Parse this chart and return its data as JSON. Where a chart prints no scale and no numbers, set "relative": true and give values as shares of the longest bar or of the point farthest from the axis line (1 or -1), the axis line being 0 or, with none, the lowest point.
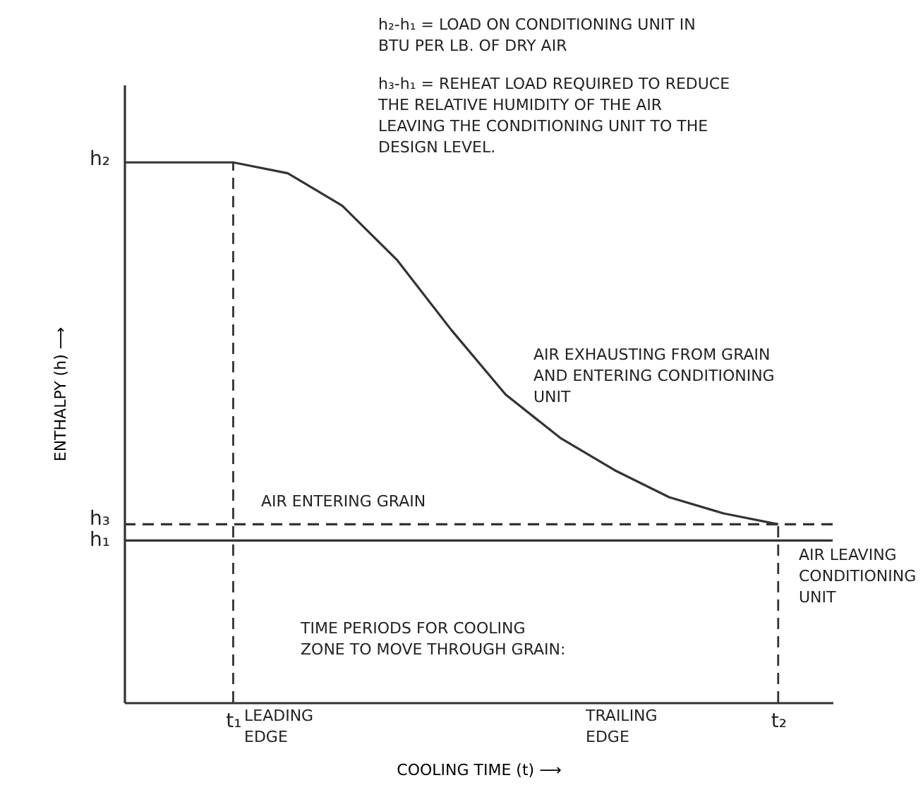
{
  "chart_data": {
    "type": "line",
    "relative": true,
    "xlabel": "COOLING TIME (t) ⟶",
    "ylabel": "ENTHALPY (h) ⟶",
    "categories": [
      null,
      null,
      "t₁",
      null,
      null,
      null,
      null,
      null,
      null,
      null,
      null,
      null,
      "t₂",
      null
    ],
    "series": [
      {
        "color": "#333333",
        "line_style": "solid",
        "values": [
          1,
          1,
          1,
          0.98,
          0.92,
          0.82,
          0.69,
          0.57,
          0.49,
          0.43,
          0.38,
          0.35,
          0.33,
          null
        ]
      },
      {
        "color": "#333333",
        "line_style": "dashed",
        "values": [
          0.33,
          0.33,
          0.33,
          0.33,
          0.33,
          0.33,
          0.33,
          0.33,
          0.33,
          0.33,
          0.33,
          0.33,
          0.33,
          0.33
        ]
      },
      {
        "color": "#333333",
        "line_style": "solid",
        "values": [
          0.3,
          0.3,
          0.3,
          0.3,
          0.3,
          0.3,
          0.3,
          0.3,
          0.3,
          0.3,
          0.3,
          0.3,
          0.3,
          0.3
        ]
      }
    ],
    "ref_lines": [
      {
        "axis": "x",
        "value": "t₁",
        "line_style": "dashed"
      },
      {
        "axis": "x",
        "value": "t₂",
        "line_style": "dashed"
      }
    ],
    "annotations": [
      "h₂-h₁ = LOAD ON CONDITIONING UNIT IN BTU PER LB. OF DRY AIR",
      "h₃-h₁ = REHEAT LOAD REQUIRED TO REDUCE THE RELATIVE HUMIDITY OF THE AIR LEAVING THE CONDITIONING UNIT TO THE DESIGN LEVEL.",
      "AIR EXHAUSTING FROM GRAIN AND ENTERING CONDITIONING UNIT",
      "AIR ENTERING GRAIN",
      "AIR LEAVING CONDITIONING UNIT",
      "TIME PERIODS FOR COOLING ZONE TO MOVE THROUGH GRAIN:",
      "LEADING EDGE",
      "TRAILING EDGE",
      "h₂",
      "h₃",
      "h₁"
    ]
  }
}
